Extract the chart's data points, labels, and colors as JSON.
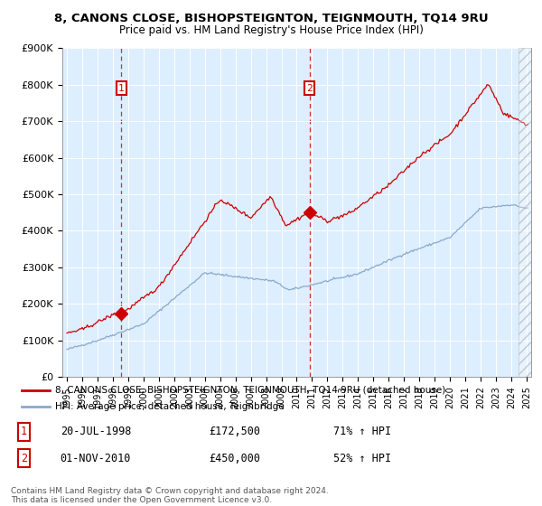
{
  "title": "8, CANONS CLOSE, BISHOPSTEIGNTON, TEIGNMOUTH, TQ14 9RU",
  "subtitle": "Price paid vs. HM Land Registry's House Price Index (HPI)",
  "ylim": [
    0,
    900000
  ],
  "yticks": [
    0,
    100000,
    200000,
    300000,
    400000,
    500000,
    600000,
    700000,
    800000,
    900000
  ],
  "ytick_labels": [
    "£0",
    "£100K",
    "£200K",
    "£300K",
    "£400K",
    "£500K",
    "£600K",
    "£700K",
    "£800K",
    "£900K"
  ],
  "plot_bg_color": "#ddeeff",
  "line_color_red": "#cc0000",
  "line_color_blue": "#88aacc",
  "legend_line1": "8, CANONS CLOSE, BISHOPSTEIGNTON, TEIGNMOUTH, TQ14 9RU (detached house)",
  "legend_line2": "HPI: Average price, detached house, Teignbridge",
  "sale1_date": "20-JUL-1998",
  "sale1_price": "£172,500",
  "sale1_pct": "71% ↑ HPI",
  "sale1_year": 1998.55,
  "sale1_value": 172500,
  "sale2_date": "01-NOV-2010",
  "sale2_price": "£450,000",
  "sale2_pct": "52% ↑ HPI",
  "sale2_year": 2010.83,
  "sale2_value": 450000,
  "footer": "Contains HM Land Registry data © Crown copyright and database right 2024.\nThis data is licensed under the Open Government Licence v3.0.",
  "hatch_start_year": 2024.5,
  "xlim_start": 1994.7,
  "xlim_end": 2025.3
}
